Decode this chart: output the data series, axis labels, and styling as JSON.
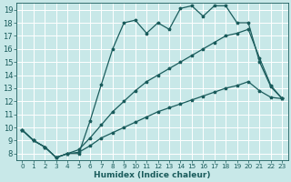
{
  "xlabel": "Humidex (Indice chaleur)",
  "bg_color": "#c8e8e8",
  "line_color": "#1a5c5c",
  "grid_color": "#ffffff",
  "grid_minor_color": "#ddeaea",
  "xlim": [
    -0.5,
    23.5
  ],
  "ylim": [
    7.5,
    19.5
  ],
  "yticks": [
    8,
    9,
    10,
    11,
    12,
    13,
    14,
    15,
    16,
    17,
    18,
    19
  ],
  "xticks": [
    0,
    1,
    2,
    3,
    4,
    5,
    6,
    7,
    8,
    9,
    10,
    11,
    12,
    13,
    14,
    15,
    16,
    17,
    18,
    19,
    20,
    21,
    22,
    23
  ],
  "series1_x": [
    0,
    1,
    2,
    3,
    4,
    5,
    6,
    7,
    8,
    9,
    10,
    11,
    12,
    13,
    14,
    15,
    16,
    17,
    18,
    19,
    20,
    21,
    22,
    23
  ],
  "series1_y": [
    9.8,
    9.0,
    8.5,
    7.7,
    8.0,
    8.0,
    10.5,
    13.3,
    16.0,
    18.0,
    18.2,
    17.2,
    18.0,
    17.5,
    19.1,
    19.3,
    18.5,
    19.3,
    19.3,
    18.0,
    18.0,
    15.0,
    13.1,
    12.2
  ],
  "series2_x": [
    0,
    1,
    2,
    3,
    4,
    5,
    6,
    7,
    8,
    9,
    10,
    11,
    12,
    13,
    14,
    15,
    16,
    17,
    18,
    19,
    20,
    21,
    22,
    23
  ],
  "series2_y": [
    9.8,
    9.0,
    8.5,
    7.7,
    8.0,
    8.3,
    9.2,
    10.2,
    11.2,
    12.0,
    12.8,
    13.5,
    14.0,
    14.5,
    15.0,
    15.5,
    16.0,
    16.5,
    17.0,
    17.2,
    17.5,
    15.3,
    13.2,
    12.2
  ],
  "series3_x": [
    0,
    1,
    2,
    3,
    4,
    5,
    6,
    7,
    8,
    9,
    10,
    11,
    12,
    13,
    14,
    15,
    16,
    17,
    18,
    19,
    20,
    21,
    22,
    23
  ],
  "series3_y": [
    9.8,
    9.0,
    8.5,
    7.7,
    8.0,
    8.1,
    8.6,
    9.2,
    9.6,
    10.0,
    10.4,
    10.8,
    11.2,
    11.5,
    11.8,
    12.1,
    12.4,
    12.7,
    13.0,
    13.2,
    13.5,
    12.8,
    12.3,
    12.2
  ],
  "xlabel_fontsize": 6.5,
  "ytick_fontsize": 6,
  "xtick_fontsize": 5.2,
  "linewidth": 0.9,
  "markersize": 2.5
}
